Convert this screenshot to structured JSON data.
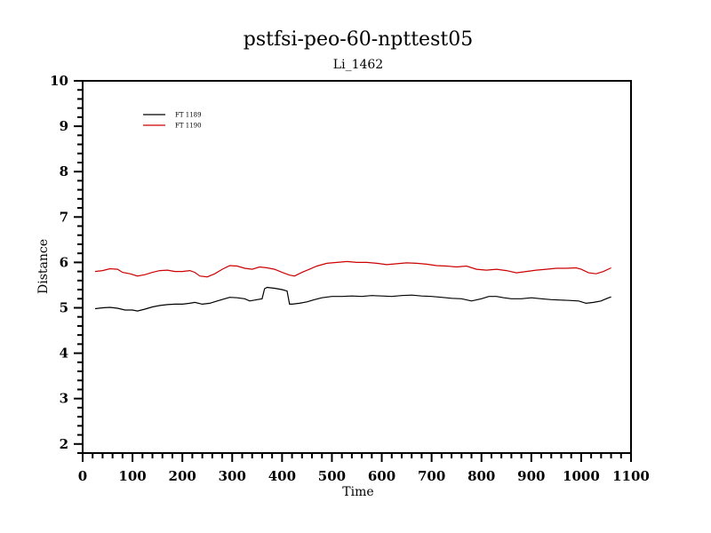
{
  "chart_data": {
    "type": "line",
    "title": "pstfsi-peo-60-npttest05",
    "subtitle": "Li_1462",
    "xlabel": "Time",
    "ylabel": "Distance",
    "xlim": [
      0,
      1100
    ],
    "ylim": [
      1.8,
      10
    ],
    "x_ticks": [
      0,
      100,
      200,
      300,
      400,
      500,
      600,
      700,
      800,
      900,
      1000,
      1100
    ],
    "y_ticks": [
      2,
      3,
      4,
      5,
      6,
      7,
      8,
      9,
      10
    ],
    "grid": false,
    "legend_position": "top-left",
    "series": [
      {
        "name": "FT 1189",
        "color": "#000000",
        "x": [
          25,
          40,
          55,
          70,
          85,
          100,
          110,
          125,
          140,
          155,
          170,
          185,
          200,
          215,
          225,
          240,
          255,
          270,
          285,
          295,
          310,
          325,
          335,
          350,
          360,
          365,
          370,
          385,
          400,
          410,
          415,
          420,
          435,
          450,
          465,
          480,
          500,
          520,
          540,
          560,
          580,
          600,
          620,
          640,
          660,
          680,
          700,
          720,
          740,
          760,
          780,
          800,
          815,
          830,
          845,
          860,
          880,
          900,
          920,
          940,
          960,
          980,
          995,
          1010,
          1025,
          1040,
          1050,
          1060
        ],
        "y": [
          4.98,
          5.0,
          5.01,
          4.99,
          4.95,
          4.95,
          4.93,
          4.97,
          5.02,
          5.05,
          5.07,
          5.08,
          5.08,
          5.1,
          5.12,
          5.08,
          5.1,
          5.15,
          5.2,
          5.23,
          5.22,
          5.2,
          5.15,
          5.18,
          5.2,
          5.42,
          5.45,
          5.43,
          5.4,
          5.37,
          5.08,
          5.08,
          5.1,
          5.13,
          5.18,
          5.22,
          5.25,
          5.25,
          5.26,
          5.25,
          5.27,
          5.26,
          5.25,
          5.27,
          5.28,
          5.26,
          5.25,
          5.23,
          5.21,
          5.2,
          5.15,
          5.2,
          5.25,
          5.25,
          5.22,
          5.2,
          5.2,
          5.22,
          5.2,
          5.18,
          5.17,
          5.16,
          5.15,
          5.1,
          5.12,
          5.15,
          5.2,
          5.24
        ]
      },
      {
        "name": "FT 1190",
        "color": "#cc0000",
        "x": [
          25,
          40,
          55,
          70,
          80,
          95,
          110,
          125,
          140,
          155,
          170,
          185,
          200,
          215,
          225,
          235,
          250,
          265,
          280,
          295,
          310,
          325,
          340,
          355,
          370,
          385,
          400,
          415,
          425,
          440,
          455,
          470,
          490,
          510,
          530,
          550,
          570,
          590,
          610,
          630,
          650,
          670,
          690,
          710,
          730,
          750,
          770,
          790,
          810,
          830,
          850,
          870,
          890,
          910,
          930,
          950,
          970,
          990,
          1000,
          1015,
          1030,
          1045,
          1060
        ],
        "y": [
          5.8,
          5.82,
          5.86,
          5.85,
          5.78,
          5.75,
          5.7,
          5.73,
          5.78,
          5.82,
          5.83,
          5.8,
          5.8,
          5.82,
          5.78,
          5.7,
          5.68,
          5.75,
          5.85,
          5.93,
          5.92,
          5.87,
          5.85,
          5.9,
          5.88,
          5.85,
          5.78,
          5.72,
          5.7,
          5.78,
          5.85,
          5.92,
          5.98,
          6.0,
          6.02,
          6.0,
          6.0,
          5.98,
          5.95,
          5.97,
          5.99,
          5.98,
          5.96,
          5.93,
          5.92,
          5.9,
          5.92,
          5.85,
          5.83,
          5.85,
          5.82,
          5.77,
          5.8,
          5.83,
          5.85,
          5.87,
          5.87,
          5.88,
          5.85,
          5.77,
          5.75,
          5.8,
          5.88
        ]
      }
    ]
  }
}
